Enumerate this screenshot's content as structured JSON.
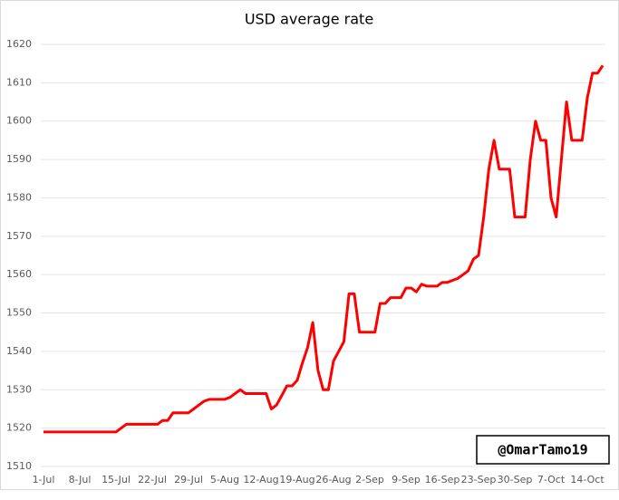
{
  "chart_data": {
    "type": "line",
    "title": "USD average rate",
    "categories": [
      "1-Jul",
      null,
      null,
      null,
      null,
      null,
      null,
      "8-Jul",
      null,
      null,
      null,
      null,
      null,
      null,
      "15-Jul",
      null,
      null,
      null,
      null,
      null,
      null,
      "22-Jul",
      null,
      null,
      null,
      null,
      null,
      null,
      "29-Jul",
      null,
      null,
      null,
      null,
      null,
      null,
      "5-Aug",
      null,
      null,
      null,
      null,
      null,
      null,
      "12-Aug",
      null,
      null,
      null,
      null,
      null,
      null,
      "19-Aug",
      null,
      null,
      null,
      null,
      null,
      null,
      "26-Aug",
      null,
      null,
      null,
      null,
      null,
      null,
      "2-Sep",
      null,
      null,
      null,
      null,
      null,
      null,
      "9-Sep",
      null,
      null,
      null,
      null,
      null,
      null,
      "16-Sep",
      null,
      null,
      null,
      null,
      null,
      null,
      "23-Sep",
      null,
      null,
      null,
      null,
      null,
      null,
      "30-Sep",
      null,
      null,
      null,
      null,
      null,
      null,
      "7-Oct",
      null,
      null,
      null,
      null,
      null,
      null,
      "14-Oct",
      null,
      null,
      null
    ],
    "series": [
      {
        "name": "USD",
        "color": "#ff0000",
        "values": [
          1519,
          1519,
          1519,
          1519,
          1519,
          1519,
          1519,
          1519,
          1519,
          1519,
          1519,
          1519,
          1519,
          1519,
          1519,
          1520,
          1521,
          1521,
          1521,
          1521,
          1521,
          1521,
          1521,
          1522,
          1522,
          1524,
          1524,
          1524,
          1524,
          1525,
          1526,
          1527,
          1527.5,
          1527.5,
          1527.5,
          1527.5,
          1528,
          1529,
          1530,
          1529,
          1529,
          1529,
          1529,
          1529,
          1525,
          1526,
          1528.5,
          1531,
          1531,
          1532.5,
          1537,
          1541,
          1547.5,
          1535,
          1530,
          1530,
          1537.5,
          1540,
          1542.5,
          1555,
          1555,
          1545,
          1545,
          1545,
          1545,
          1552.5,
          1552.5,
          1554,
          1554,
          1554,
          1556.5,
          1556.5,
          1555.5,
          1557.5,
          1557,
          1557,
          1557,
          1558,
          1558,
          1558.5,
          1559,
          1560,
          1561,
          1564,
          1565,
          1575,
          1587.5,
          1595,
          1587.5,
          1587.5,
          1587.5,
          1575,
          1575,
          1575,
          1590,
          1600,
          1595,
          1595,
          1580,
          1575,
          1590,
          1605,
          1595,
          1595,
          1595,
          1606,
          1612.5,
          1612.5,
          1614.5
        ]
      }
    ],
    "ylim": [
      1510,
      1620
    ],
    "yticks": [
      1510,
      1520,
      1530,
      1540,
      1550,
      1560,
      1570,
      1580,
      1590,
      1600,
      1610,
      1620
    ],
    "grid": true,
    "watermark": "@OmarTamo19"
  }
}
